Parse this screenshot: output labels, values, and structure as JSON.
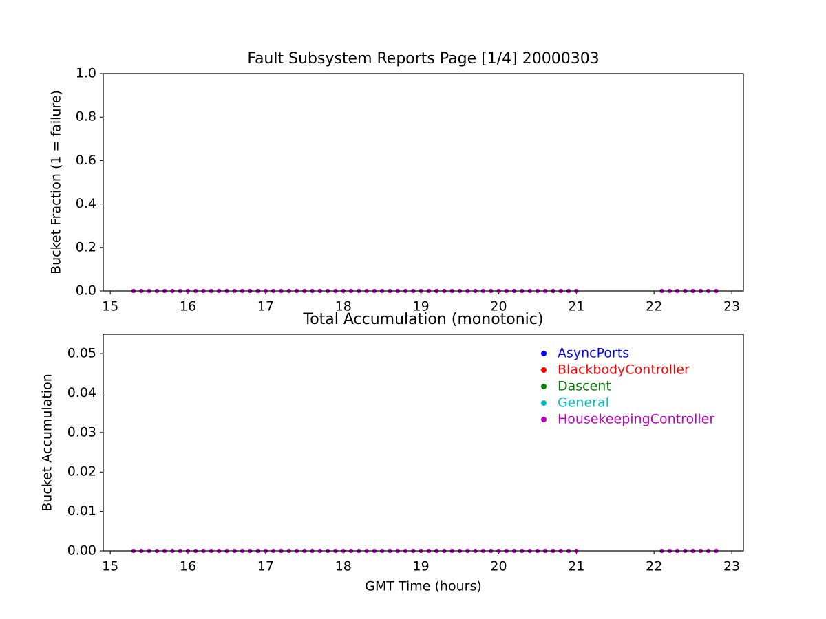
{
  "chart_data": [
    {
      "type": "scatter",
      "title": "Fault Subsystem Reports Page [1/4] 20000303",
      "ylabel": "Bucket Fraction (1 = failure)",
      "x": [
        15.3,
        15.4,
        15.5,
        15.6,
        15.7,
        15.8,
        15.9,
        16,
        16.1,
        16.2,
        16.3,
        16.4,
        16.5,
        16.6,
        16.7,
        16.8,
        16.9,
        17,
        17.1,
        17.2,
        17.3,
        17.4,
        17.5,
        17.6,
        17.7,
        17.8,
        17.9,
        18,
        18.1,
        18.2,
        18.3,
        18.4,
        18.5,
        18.6,
        18.7,
        18.8,
        18.9,
        19,
        19.1,
        19.2,
        19.3,
        19.4,
        19.5,
        19.6,
        19.7,
        19.8,
        19.9,
        20,
        20.1,
        20.2,
        20.3,
        20.4,
        20.5,
        20.6,
        20.7,
        20.8,
        20.9,
        21,
        22.1,
        22.2,
        22.3,
        22.4,
        22.5,
        22.6,
        22.7,
        22.8
      ],
      "series": [
        {
          "name": "AsyncPorts",
          "color": "#0000ff",
          "values": [
            0,
            0,
            0,
            0,
            0,
            0,
            0,
            0,
            0,
            0,
            0,
            0,
            0,
            0,
            0,
            0,
            0,
            0,
            0,
            0,
            0,
            0,
            0,
            0,
            0,
            0,
            0,
            0,
            0,
            0,
            0,
            0,
            0,
            0,
            0,
            0,
            0,
            0,
            0,
            0,
            0,
            0,
            0,
            0,
            0,
            0,
            0,
            0,
            0,
            0,
            0,
            0,
            0,
            0,
            0,
            0,
            0,
            0,
            0,
            0,
            0,
            0,
            0,
            0,
            0,
            0
          ]
        },
        {
          "name": "BlackbodyController",
          "color": "#ff0000",
          "values": [
            0,
            0,
            0,
            0,
            0,
            0,
            0,
            0,
            0,
            0,
            0,
            0,
            0,
            0,
            0,
            0,
            0,
            0,
            0,
            0,
            0,
            0,
            0,
            0,
            0,
            0,
            0,
            0,
            0,
            0,
            0,
            0,
            0,
            0,
            0,
            0,
            0,
            0,
            0,
            0,
            0,
            0,
            0,
            0,
            0,
            0,
            0,
            0,
            0,
            0,
            0,
            0,
            0,
            0,
            0,
            0,
            0,
            0,
            0,
            0,
            0,
            0,
            0,
            0,
            0,
            0
          ]
        },
        {
          "name": "Dascent",
          "color": "#008000",
          "values": [
            0,
            0,
            0,
            0,
            0,
            0,
            0,
            0,
            0,
            0,
            0,
            0,
            0,
            0,
            0,
            0,
            0,
            0,
            0,
            0,
            0,
            0,
            0,
            0,
            0,
            0,
            0,
            0,
            0,
            0,
            0,
            0,
            0,
            0,
            0,
            0,
            0,
            0,
            0,
            0,
            0,
            0,
            0,
            0,
            0,
            0,
            0,
            0,
            0,
            0,
            0,
            0,
            0,
            0,
            0,
            0,
            0,
            0,
            0,
            0,
            0,
            0,
            0,
            0,
            0,
            0
          ]
        },
        {
          "name": "General",
          "color": "#00bfbf",
          "values": [
            0,
            0,
            0,
            0,
            0,
            0,
            0,
            0,
            0,
            0,
            0,
            0,
            0,
            0,
            0,
            0,
            0,
            0,
            0,
            0,
            0,
            0,
            0,
            0,
            0,
            0,
            0,
            0,
            0,
            0,
            0,
            0,
            0,
            0,
            0,
            0,
            0,
            0,
            0,
            0,
            0,
            0,
            0,
            0,
            0,
            0,
            0,
            0,
            0,
            0,
            0,
            0,
            0,
            0,
            0,
            0,
            0,
            0,
            0,
            0,
            0,
            0,
            0,
            0,
            0,
            0
          ]
        },
        {
          "name": "HousekeepingController",
          "color": "#bf00bf",
          "values": [
            0,
            0,
            0,
            0,
            0,
            0,
            0,
            0,
            0,
            0,
            0,
            0,
            0,
            0,
            0,
            0,
            0,
            0,
            0,
            0,
            0,
            0,
            0,
            0,
            0,
            0,
            0,
            0,
            0,
            0,
            0,
            0,
            0,
            0,
            0,
            0,
            0,
            0,
            0,
            0,
            0,
            0,
            0,
            0,
            0,
            0,
            0,
            0,
            0,
            0,
            0,
            0,
            0,
            0,
            0,
            0,
            0,
            0,
            0,
            0,
            0,
            0,
            0,
            0,
            0,
            0
          ]
        }
      ],
      "xlim": [
        14.91,
        23.15
      ],
      "xticks": [
        15,
        16,
        17,
        18,
        19,
        20,
        21,
        22,
        23
      ],
      "ylim": [
        0,
        1
      ],
      "yticks": [
        {
          "value": 0,
          "label": "0.0"
        },
        {
          "value": 0.2,
          "label": "0.2"
        },
        {
          "value": 0.4,
          "label": "0.4"
        },
        {
          "value": 0.6,
          "label": "0.6"
        },
        {
          "value": 0.8,
          "label": "0.8"
        },
        {
          "value": 1,
          "label": "1.0"
        }
      ]
    },
    {
      "type": "scatter",
      "title": "Total Accumulation (monotonic)",
      "xlabel": "GMT Time (hours)",
      "ylabel": "Bucket Accumulation",
      "legend": "upper right",
      "x": [
        15.3,
        15.4,
        15.5,
        15.6,
        15.7,
        15.8,
        15.9,
        16,
        16.1,
        16.2,
        16.3,
        16.4,
        16.5,
        16.6,
        16.7,
        16.8,
        16.9,
        17,
        17.1,
        17.2,
        17.3,
        17.4,
        17.5,
        17.6,
        17.7,
        17.8,
        17.9,
        18,
        18.1,
        18.2,
        18.3,
        18.4,
        18.5,
        18.6,
        18.7,
        18.8,
        18.9,
        19,
        19.1,
        19.2,
        19.3,
        19.4,
        19.5,
        19.6,
        19.7,
        19.8,
        19.9,
        20,
        20.1,
        20.2,
        20.3,
        20.4,
        20.5,
        20.6,
        20.7,
        20.8,
        20.9,
        21,
        22.1,
        22.2,
        22.3,
        22.4,
        22.5,
        22.6,
        22.7,
        22.8
      ],
      "series": [
        {
          "name": "AsyncPorts",
          "color": "#0000ff",
          "values": [
            0,
            0,
            0,
            0,
            0,
            0,
            0,
            0,
            0,
            0,
            0,
            0,
            0,
            0,
            0,
            0,
            0,
            0,
            0,
            0,
            0,
            0,
            0,
            0,
            0,
            0,
            0,
            0,
            0,
            0,
            0,
            0,
            0,
            0,
            0,
            0,
            0,
            0,
            0,
            0,
            0,
            0,
            0,
            0,
            0,
            0,
            0,
            0,
            0,
            0,
            0,
            0,
            0,
            0,
            0,
            0,
            0,
            0,
            0,
            0,
            0,
            0,
            0,
            0,
            0,
            0
          ]
        },
        {
          "name": "BlackbodyController",
          "color": "#ff0000",
          "values": [
            0,
            0,
            0,
            0,
            0,
            0,
            0,
            0,
            0,
            0,
            0,
            0,
            0,
            0,
            0,
            0,
            0,
            0,
            0,
            0,
            0,
            0,
            0,
            0,
            0,
            0,
            0,
            0,
            0,
            0,
            0,
            0,
            0,
            0,
            0,
            0,
            0,
            0,
            0,
            0,
            0,
            0,
            0,
            0,
            0,
            0,
            0,
            0,
            0,
            0,
            0,
            0,
            0,
            0,
            0,
            0,
            0,
            0,
            0,
            0,
            0,
            0,
            0,
            0,
            0,
            0
          ]
        },
        {
          "name": "Dascent",
          "color": "#008000",
          "values": [
            0,
            0,
            0,
            0,
            0,
            0,
            0,
            0,
            0,
            0,
            0,
            0,
            0,
            0,
            0,
            0,
            0,
            0,
            0,
            0,
            0,
            0,
            0,
            0,
            0,
            0,
            0,
            0,
            0,
            0,
            0,
            0,
            0,
            0,
            0,
            0,
            0,
            0,
            0,
            0,
            0,
            0,
            0,
            0,
            0,
            0,
            0,
            0,
            0,
            0,
            0,
            0,
            0,
            0,
            0,
            0,
            0,
            0,
            0,
            0,
            0,
            0,
            0,
            0,
            0,
            0
          ]
        },
        {
          "name": "General",
          "color": "#00bfbf",
          "values": [
            0,
            0,
            0,
            0,
            0,
            0,
            0,
            0,
            0,
            0,
            0,
            0,
            0,
            0,
            0,
            0,
            0,
            0,
            0,
            0,
            0,
            0,
            0,
            0,
            0,
            0,
            0,
            0,
            0,
            0,
            0,
            0,
            0,
            0,
            0,
            0,
            0,
            0,
            0,
            0,
            0,
            0,
            0,
            0,
            0,
            0,
            0,
            0,
            0,
            0,
            0,
            0,
            0,
            0,
            0,
            0,
            0,
            0,
            0,
            0,
            0,
            0,
            0,
            0,
            0,
            0
          ]
        },
        {
          "name": "HousekeepingController",
          "color": "#bf00bf",
          "values": [
            0,
            0,
            0,
            0,
            0,
            0,
            0,
            0,
            0,
            0,
            0,
            0,
            0,
            0,
            0,
            0,
            0,
            0,
            0,
            0,
            0,
            0,
            0,
            0,
            0,
            0,
            0,
            0,
            0,
            0,
            0,
            0,
            0,
            0,
            0,
            0,
            0,
            0,
            0,
            0,
            0,
            0,
            0,
            0,
            0,
            0,
            0,
            0,
            0,
            0,
            0,
            0,
            0,
            0,
            0,
            0,
            0,
            0,
            0,
            0,
            0,
            0,
            0,
            0,
            0,
            0
          ]
        }
      ],
      "xlim": [
        14.91,
        23.15
      ],
      "xticks": [
        15,
        16,
        17,
        18,
        19,
        20,
        21,
        22,
        23
      ],
      "ylim": [
        0,
        0.0549
      ],
      "yticks": [
        {
          "value": 0,
          "label": "0.00"
        },
        {
          "value": 0.01,
          "label": "0.01"
        },
        {
          "value": 0.02,
          "label": "0.02"
        },
        {
          "value": 0.03,
          "label": "0.03"
        },
        {
          "value": 0.04,
          "label": "0.04"
        },
        {
          "value": 0.05,
          "label": "0.05"
        }
      ]
    }
  ]
}
